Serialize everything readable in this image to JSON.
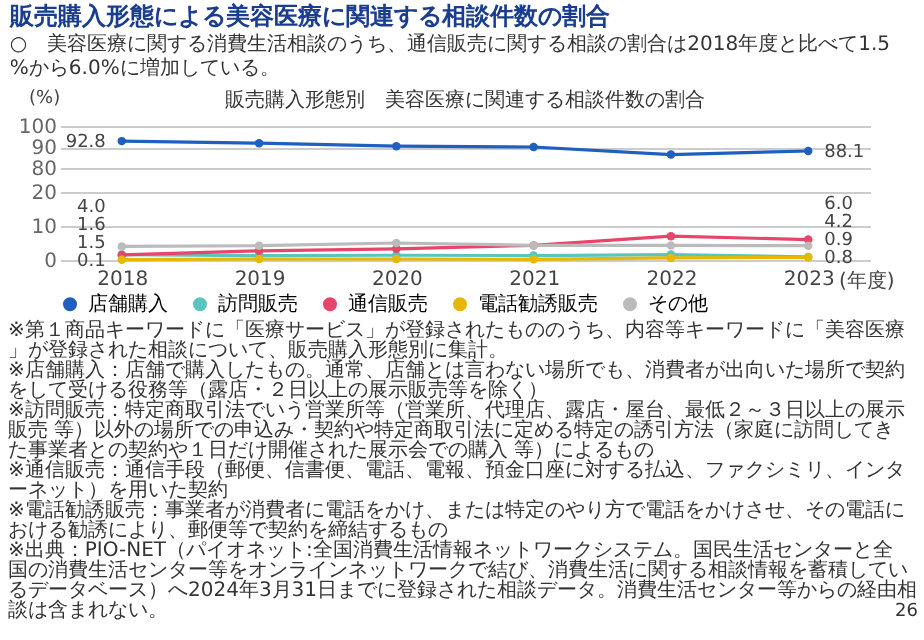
{
  "chart_data": [
    {
      "type": "line",
      "title": "販売購入形態による美容医療に関連する相談件数の割合",
      "subtitle": "○　美容医療に関する消費生活相談のうち、通信販売に関する相談の割合は2018年度と比べて1.5%から6.0%に増加している。",
      "annotations": [
        "販売購入形態別　美容医療に関連する相談件数の割合"
      ],
      "ylabel": "(%)",
      "categories": [
        "2018",
        "2019",
        "2020",
        "2021",
        "2022",
        "2023"
      ],
      "series": [
        {
          "name": "店舗購入",
          "color": "#1f5fbf",
          "values": [
            92.8,
            91.8,
            90.4,
            90.0,
            86.4,
            88.1
          ],
          "value_labels": [
            "92.8",
            null,
            null,
            null,
            null,
            "88.1"
          ]
        }
      ],
      "ylim": [
        80,
        100
      ],
      "yticks": [
        80,
        90,
        100
      ],
      "grid": "y",
      "tick_labels": "y",
      "marker": "circle",
      "line_style": "solid"
    },
    {
      "type": "line",
      "xlabel": "(年度)",
      "categories": [
        "2018",
        "2019",
        "2020",
        "2021",
        "2022",
        "2023"
      ],
      "series": [
        {
          "name": "訪問販売",
          "color": "#5cc4c0",
          "values": [
            1.6,
            1.3,
            1.4,
            1.3,
            1.6,
            0.9
          ],
          "value_labels": [
            "1.6",
            null,
            null,
            null,
            null,
            "0.9"
          ]
        },
        {
          "name": "通信販売",
          "color": "#e8456b",
          "values": [
            1.5,
            2.7,
            3.3,
            4.3,
            7.0,
            6.0
          ],
          "value_labels": [
            "1.5",
            null,
            null,
            null,
            null,
            "6.0"
          ]
        },
        {
          "name": "電話勧誘販売",
          "color": "#e6b800",
          "values": [
            0.1,
            0.3,
            0.3,
            0.2,
            0.6,
            0.8
          ],
          "value_labels": [
            "0.1",
            null,
            null,
            null,
            null,
            "0.8"
          ]
        },
        {
          "name": "その他",
          "color": "#bbbbbb",
          "values": [
            4.0,
            4.2,
            5.0,
            4.3,
            4.3,
            4.2
          ],
          "value_labels": [
            "4.0",
            null,
            null,
            null,
            null,
            "4.2"
          ]
        }
      ],
      "ylim": [
        0,
        20
      ],
      "yticks": [
        0,
        10,
        20
      ],
      "grid": "y",
      "legend": "bottom",
      "marker": "circle",
      "line_style": "solid",
      "annotations": [
        "※第１商品キーワードに「医療サービス」が登録されたもののうち、内容等キーワードに「美容医療」が登録された相談について、販売購入形態別に集計。",
        "※店舗購入：店舗で購入したもの。通常、店舗とは言わない場所でも、消費者が出向いた場所で契約をして受ける役務等（露店・２日以上の展示販売等を除く）",
        "※訪問販売：特定商取引法でいう営業所等（営業所、代理店、露店・屋台、最低２～３日以上の展示販売 等）以外の場所での申込み・契約や特定商取引法に定める特定の誘引方法（家庭に訪問してきた事業者との契約や１日だけ開催された展示会での購入 等）によるもの",
        "※通信販売：通信手段（郵便、信書便、電話、電報、預金口座に対する払込、ファクシミリ、インターネット）を用いた契約",
        "※電話勧誘販売：事業者が消費者に電話をかけ、または特定のやり方で電話をかけさせ、その電話における勧誘により、郵便等で契約を締結するもの",
        "※出典：PIO-NET（パイオネット:全国消費生活情報ネットワークシステム。国民生活センターと全国の消費生活センター等をオンラインネットワークで結び、消費生活に関する相談情報を蓄積しているデータベース）へ2024年3月31日までに登録された相談データ。消費生活センター等からの経由相談は含まれない。",
        "26"
      ]
    }
  ]
}
